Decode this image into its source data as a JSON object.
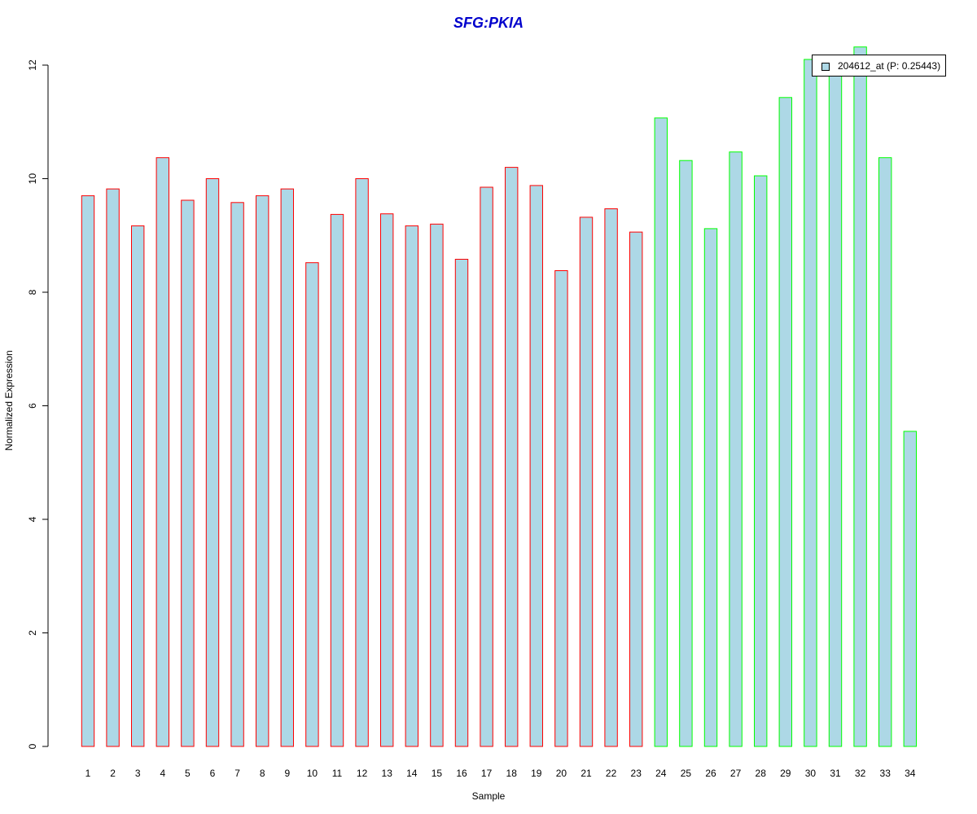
{
  "chart_data": {
    "type": "bar",
    "title": "SFG:PKIA",
    "xlabel": "Sample",
    "ylabel": "Normalized Expression",
    "ylim": [
      0,
      12.3
    ],
    "yticks": [
      "0",
      "2",
      "4",
      "6",
      "8",
      "10",
      "12"
    ],
    "categories": [
      "1",
      "2",
      "3",
      "4",
      "5",
      "6",
      "7",
      "8",
      "9",
      "10",
      "11",
      "12",
      "13",
      "14",
      "15",
      "16",
      "17",
      "18",
      "19",
      "20",
      "21",
      "22",
      "23",
      "24",
      "25",
      "26",
      "27",
      "28",
      "29",
      "30",
      "31",
      "32",
      "33",
      "34"
    ],
    "values": [
      9.7,
      9.82,
      9.17,
      10.37,
      9.62,
      10.0,
      9.58,
      9.7,
      9.82,
      8.52,
      9.37,
      10.0,
      9.38,
      9.17,
      9.2,
      8.58,
      9.85,
      10.2,
      9.88,
      8.38,
      9.32,
      9.47,
      9.06,
      11.07,
      10.32,
      9.12,
      10.47,
      10.05,
      11.43,
      12.1,
      12.1,
      12.32,
      10.37,
      5.55
    ],
    "series": [
      {
        "name": "204612_at (P: 0.25443)",
        "values": [
          9.7,
          9.82,
          9.17,
          10.37,
          9.62,
          10.0,
          9.58,
          9.7,
          9.82,
          8.52,
          9.37,
          10.0,
          9.38,
          9.17,
          9.2,
          8.58,
          9.85,
          10.2,
          9.88,
          8.38,
          9.32,
          9.47,
          9.06,
          11.07,
          10.32,
          9.12,
          10.47,
          10.05,
          11.43,
          12.1,
          12.1,
          12.32,
          10.37,
          5.55
        ]
      }
    ],
    "groups": [
      {
        "samples": "1-23",
        "border_color": "#ff0000"
      },
      {
        "samples": "24-34",
        "border_color": "#00ff00"
      }
    ],
    "bar_fill": "#add8e6",
    "legend": {
      "label": "204612_at (P: 0.25443)",
      "placement": "top-right"
    },
    "grid": false
  }
}
